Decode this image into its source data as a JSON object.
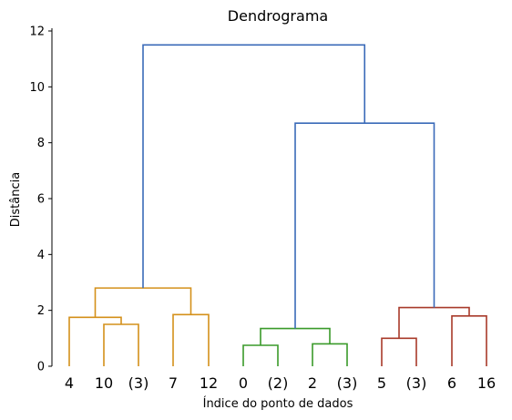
{
  "chart_data": {
    "type": "dendrogram",
    "title": "Dendrograma",
    "xlabel": "Índice do ponto de dados",
    "ylabel": "Distância",
    "ylim": [
      0,
      12
    ],
    "yticks": [
      0,
      2,
      4,
      6,
      8,
      10,
      12
    ],
    "leaves": [
      "4",
      "10",
      "(3)",
      "7",
      "12",
      "0",
      "(2)",
      "2",
      "(3)",
      "5",
      "(3)",
      "6",
      "16"
    ],
    "colors": {
      "orange": "#d4901a",
      "green": "#3a9a2a",
      "red": "#a83a2a",
      "blue": "#3a6ab8"
    },
    "merges": [
      {
        "left": "4",
        "right": "10",
        "height": 1.75,
        "color": "orange"
      },
      {
        "left": "(3)",
        "right": "10",
        "height": 1.5,
        "color": "orange"
      },
      {
        "left": "7",
        "right": "12",
        "height": 1.85,
        "color": "orange"
      },
      {
        "left": "0",
        "right": "(2)",
        "height": 0.75,
        "color": "green"
      },
      {
        "left": "2",
        "right": "(3)",
        "height": 0.8,
        "color": "green"
      },
      {
        "left": "5",
        "right": "(3)",
        "height": 1.0,
        "color": "red"
      },
      {
        "left": "6",
        "right": "16",
        "height": 1.8,
        "color": "red"
      },
      {
        "left": "cluster-orange-a",
        "right": "cluster-orange-b",
        "height": 2.8,
        "color": "orange"
      },
      {
        "left": "cluster-green-a",
        "right": "cluster-green-b",
        "height": 1.35,
        "color": "green"
      },
      {
        "left": "cluster-red-a",
        "right": "cluster-red-b",
        "height": 2.1,
        "color": "red"
      },
      {
        "left": "cluster-green",
        "right": "cluster-red",
        "height": 8.7,
        "color": "blue"
      },
      {
        "left": "cluster-orange",
        "right": "cluster-green-red",
        "height": 11.5,
        "color": "blue"
      }
    ]
  }
}
